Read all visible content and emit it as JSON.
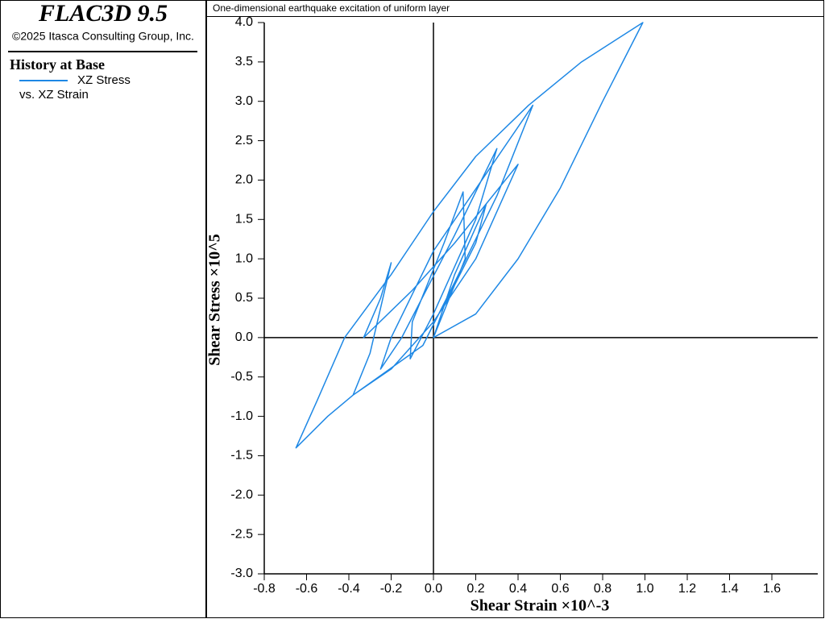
{
  "chart_data": {
    "type": "line",
    "app_title": "FLAC3D 9.5",
    "copyright": "©2025 Itasca Consulting Group, Inc.",
    "legend_title": "History at Base",
    "legend_subtitle": "vs. XZ Strain",
    "title": "One-dimensional earthquake excitation of uniform layer",
    "x_label": "Shear Strain ×10^-3",
    "y_label": "Shear Stress ×10^5",
    "xlim": [
      -0.8,
      1.817
    ],
    "ylim": [
      -3.0,
      4.0
    ],
    "xticks": [
      -0.8,
      -0.6,
      -0.4,
      -0.2,
      {
        "value": 0,
        "label": "0.0"
      },
      0.2,
      0.4,
      0.6,
      0.8,
      {
        "value": 1,
        "label": "1.0"
      },
      1.2,
      1.4,
      1.6
    ],
    "yticks": [
      {
        "value": -3,
        "label": "-3.0"
      },
      -2.5,
      {
        "value": -2,
        "label": "-2.0"
      },
      -1.5,
      {
        "value": -1,
        "label": "-1.0"
      },
      -0.5,
      {
        "value": 0,
        "label": "0.0"
      },
      0.5,
      {
        "value": 1,
        "label": "1.0"
      },
      1.5,
      {
        "value": 2,
        "label": "2.0"
      },
      2.5,
      {
        "value": 3,
        "label": "3.0"
      },
      3.5,
      {
        "value": 4,
        "label": "4.0"
      }
    ],
    "x": [
      0,
      0.15,
      0.14,
      0.05,
      -0.1,
      -0.11,
      0.0,
      0.2,
      0.3,
      0.1,
      -0.15,
      -0.25,
      -0.2,
      0.0,
      0.47,
      0.3,
      0.1,
      -0.05,
      -0.38,
      -0.3,
      -0.2,
      -0.25,
      -0.33,
      -0.1,
      0.1,
      0.4,
      0.2,
      0.0,
      -0.2,
      -0.38,
      -0.5,
      -0.65,
      -0.55,
      -0.42,
      -0.2,
      0.0,
      0.2,
      0.45,
      0.7,
      0.99,
      0.8,
      0.6,
      0.4,
      0.2,
      0.0,
      0.1,
      0.25,
      0.2,
      0.05
    ],
    "series": [
      {
        "name": "XZ Stress",
        "color": "#1e88e5",
        "values": [
          0,
          1.0,
          1.85,
          1.2,
          0.2,
          -0.27,
          0.3,
          1.5,
          2.4,
          1.3,
          0.0,
          -0.4,
          0.0,
          1.1,
          2.95,
          1.8,
          0.7,
          -0.1,
          -0.73,
          -0.2,
          0.95,
          0.5,
          0.0,
          0.6,
          1.2,
          2.2,
          1.0,
          0.2,
          -0.4,
          -0.73,
          -1.0,
          -1.4,
          -0.8,
          0.0,
          0.8,
          1.6,
          2.3,
          2.95,
          3.5,
          4.0,
          3.0,
          1.9,
          1.0,
          0.3,
          0.0,
          0.8,
          1.7,
          1.2,
          0.4
        ]
      }
    ]
  }
}
